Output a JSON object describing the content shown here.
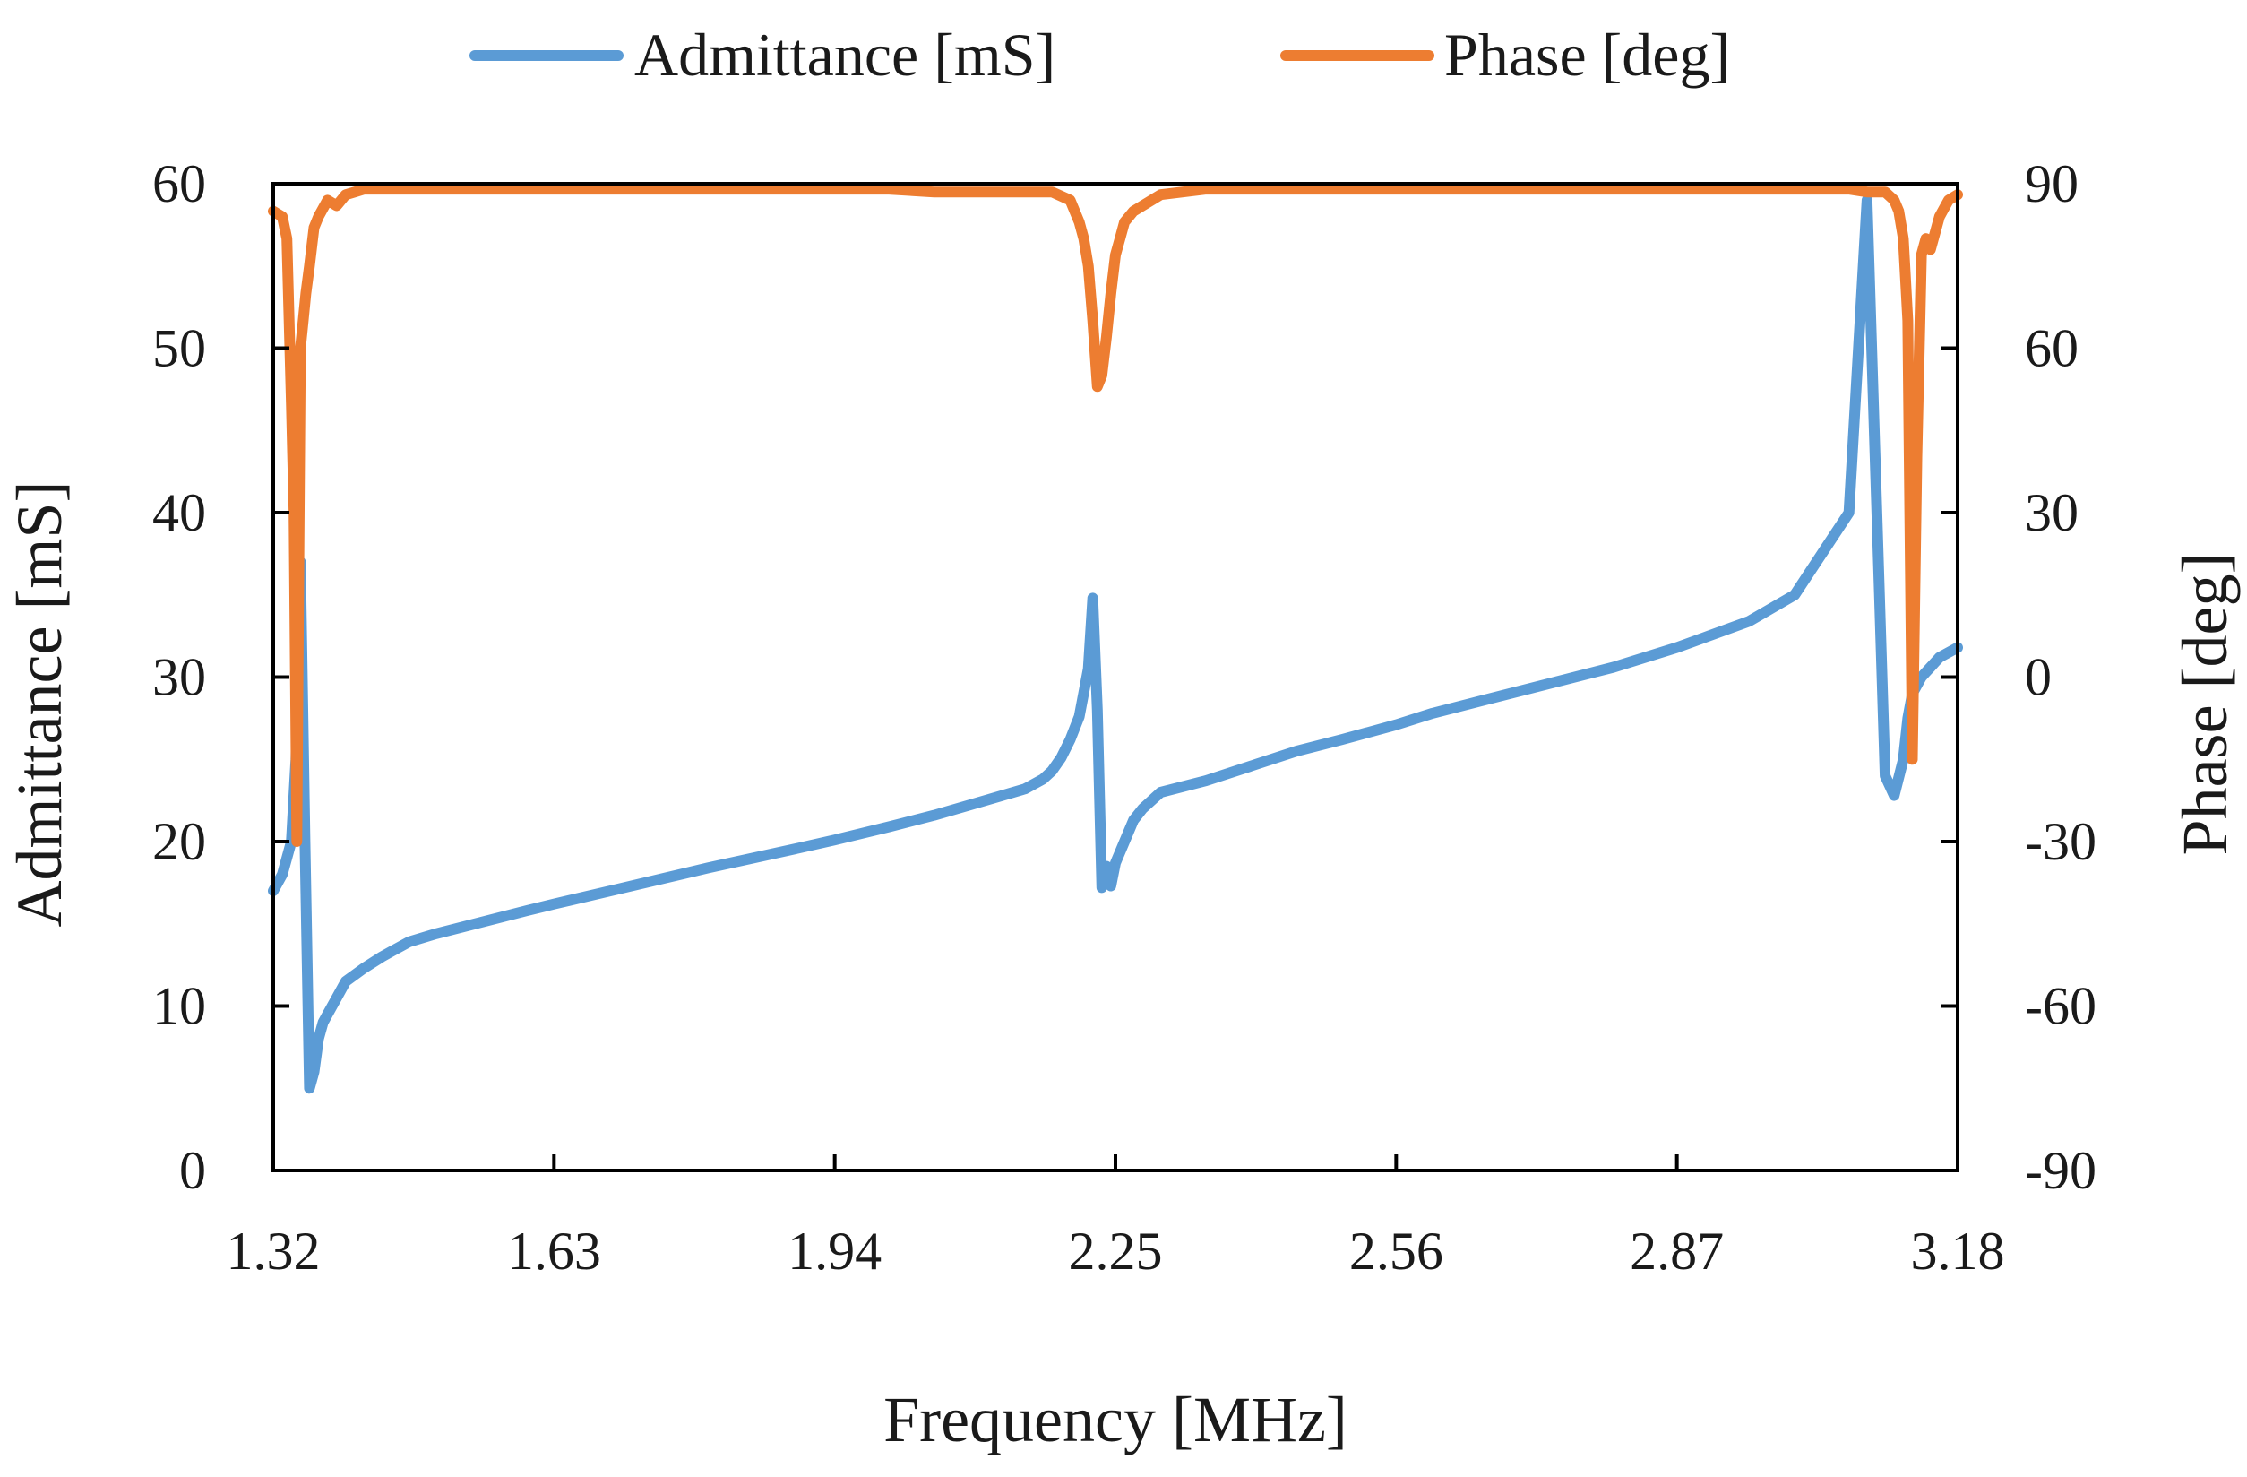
{
  "chart_data": {
    "type": "line",
    "title": "",
    "xlabel": "Frequency [MHz]",
    "ylabel": "Admittance [mS]",
    "y2label": "Phase [deg]",
    "xlim": [
      1.32,
      3.18
    ],
    "ylim": [
      0,
      60
    ],
    "y2lim": [
      -90,
      90
    ],
    "x_ticks": [
      "1.32",
      "1.63",
      "1.94",
      "2.25",
      "2.56",
      "2.87",
      "3.18"
    ],
    "y_ticks": [
      "0",
      "10",
      "20",
      "30",
      "40",
      "50",
      "60"
    ],
    "y2_ticks": [
      "-90",
      "-60",
      "-30",
      "0",
      "30",
      "60",
      "90"
    ],
    "grid": false,
    "legend_position": "top",
    "series": [
      {
        "name": "Admittance [mS]",
        "axis": "left",
        "color": "#5B9BD5",
        "x": [
          1.32,
          1.33,
          1.34,
          1.345,
          1.35,
          1.355,
          1.36,
          1.365,
          1.37,
          1.375,
          1.38,
          1.39,
          1.4,
          1.42,
          1.44,
          1.45,
          1.46,
          1.47,
          1.5,
          1.55,
          1.6,
          1.63,
          1.7,
          1.8,
          1.9,
          1.94,
          2.0,
          2.05,
          2.1,
          2.15,
          2.17,
          2.18,
          2.19,
          2.2,
          2.21,
          2.22,
          2.225,
          2.23,
          2.235,
          2.24,
          2.245,
          2.25,
          2.26,
          2.27,
          2.28,
          2.3,
          2.35,
          2.4,
          2.45,
          2.5,
          2.56,
          2.6,
          2.7,
          2.8,
          2.87,
          2.9,
          2.95,
          3.0,
          3.03,
          3.06,
          3.08,
          3.1,
          3.11,
          3.12,
          3.125,
          3.13,
          3.135,
          3.14,
          3.145,
          3.15,
          3.155,
          3.16,
          3.17,
          3.18
        ],
        "values": [
          17,
          18,
          20,
          25,
          37,
          20,
          5,
          6,
          8,
          9,
          9.5,
          10.5,
          11.5,
          12.3,
          13,
          13.3,
          13.6,
          13.9,
          14.4,
          15.1,
          15.8,
          16.2,
          17.1,
          18.4,
          19.6,
          20.1,
          20.9,
          21.6,
          22.4,
          23.2,
          23.8,
          24.3,
          25.1,
          26.2,
          27.6,
          30.5,
          34.8,
          28,
          17.2,
          18.5,
          17.3,
          18.7,
          20,
          21.3,
          22,
          23,
          23.7,
          24.6,
          25.5,
          26.2,
          27.1,
          27.8,
          29.2,
          30.6,
          31.8,
          32.4,
          33.4,
          35,
          37.5,
          40,
          59,
          24,
          22.8,
          25,
          27.5,
          29,
          29.5,
          30,
          30.3,
          30.6,
          30.9,
          31.2,
          31.5,
          31.8
        ]
      },
      {
        "name": "Phase [deg]",
        "axis": "right",
        "color": "#ED7D31",
        "x": [
          1.32,
          1.33,
          1.335,
          1.34,
          1.343,
          1.346,
          1.35,
          1.353,
          1.356,
          1.36,
          1.365,
          1.37,
          1.38,
          1.39,
          1.4,
          1.41,
          1.42,
          1.43,
          1.44,
          1.46,
          1.5,
          1.55,
          1.6,
          1.63,
          1.7,
          1.8,
          1.9,
          1.94,
          2.0,
          2.05,
          2.1,
          2.15,
          2.18,
          2.2,
          2.21,
          2.215,
          2.22,
          2.225,
          2.23,
          2.235,
          2.24,
          2.245,
          2.25,
          2.255,
          2.26,
          2.27,
          2.28,
          2.3,
          2.35,
          2.4,
          2.45,
          2.5,
          2.56,
          2.6,
          2.7,
          2.8,
          2.87,
          2.9,
          2.95,
          3.0,
          3.03,
          3.06,
          3.08,
          3.1,
          3.11,
          3.115,
          3.12,
          3.125,
          3.13,
          3.135,
          3.14,
          3.145,
          3.15,
          3.16,
          3.17,
          3.18
        ],
        "values": [
          85,
          84,
          80,
          50,
          30,
          -30,
          60,
          65,
          70,
          75,
          82,
          84,
          87,
          86,
          88,
          88.5,
          89,
          89,
          89,
          89,
          89,
          89,
          89,
          89,
          89,
          89,
          89,
          89,
          89,
          88.5,
          88.5,
          88.5,
          88.5,
          87,
          83,
          80,
          75,
          65,
          53,
          55,
          62,
          70,
          77,
          80,
          83,
          85,
          86,
          88,
          89,
          89,
          89,
          89,
          89,
          89,
          89,
          89,
          89,
          89,
          89,
          89,
          89,
          89,
          88.5,
          88.5,
          87,
          85,
          80,
          65,
          -15,
          40,
          77,
          80,
          78,
          84,
          87,
          88
        ]
      }
    ]
  }
}
